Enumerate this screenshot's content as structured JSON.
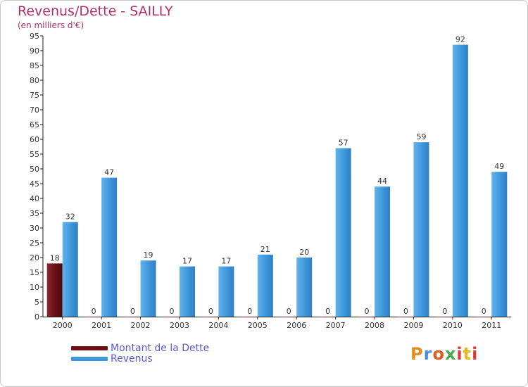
{
  "chart_data": {
    "type": "bar",
    "title": "Revenus/Dette - SAILLY",
    "subtitle": "(en milliers d'€)",
    "categories": [
      "2000",
      "2001",
      "2002",
      "2003",
      "2004",
      "2005",
      "2006",
      "2007",
      "2008",
      "2009",
      "2010",
      "2011"
    ],
    "series": [
      {
        "name": "Montant de la Dette",
        "color": "#6b0f14",
        "values": [
          18,
          0,
          0,
          0,
          0,
          0,
          0,
          0,
          0,
          0,
          0,
          0
        ]
      },
      {
        "name": "Revenus",
        "color": "#3e97db",
        "values": [
          32,
          47,
          19,
          17,
          17,
          21,
          20,
          57,
          44,
          59,
          92,
          49
        ]
      }
    ],
    "yticks": [
      0,
      5,
      10,
      15,
      20,
      25,
      30,
      35,
      40,
      45,
      50,
      55,
      60,
      65,
      70,
      75,
      80,
      85,
      90,
      95
    ],
    "ylim": [
      0,
      95
    ],
    "xlabel": "",
    "ylabel": "",
    "grid": false,
    "legend_position": "bottom-left"
  },
  "logo": {
    "text": "Proxiti",
    "colors": [
      "#e8891a",
      "#4a90d9",
      "#e05a1a",
      "#4aa84a",
      "#d83a3a",
      "#e8b81a",
      "#d83a3a"
    ]
  }
}
